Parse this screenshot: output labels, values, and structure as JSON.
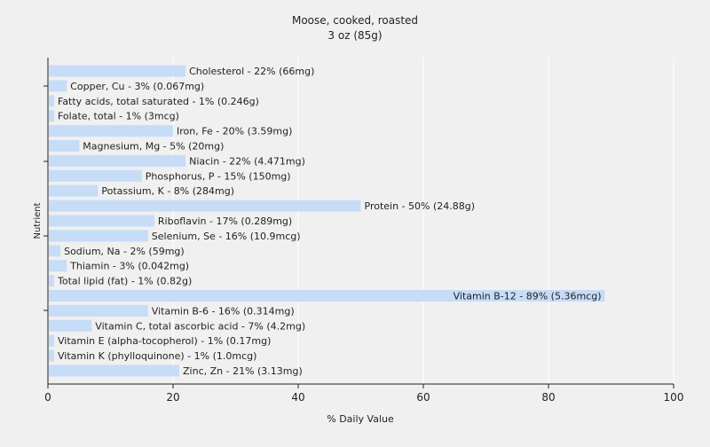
{
  "chart_data": {
    "type": "bar",
    "orientation": "horizontal",
    "title": "Moose, cooked, roasted",
    "subtitle": "3 oz (85g)",
    "xlabel": "% Daily Value",
    "ylabel": "Nutrient",
    "xlim": [
      0,
      100
    ],
    "xticks": [
      0,
      20,
      40,
      60,
      80,
      100
    ],
    "grid": true,
    "bar_color": "#c6dcf7",
    "background": "#f0f0f0",
    "grid_color": "#ffffff",
    "categories": [
      "Cholesterol",
      "Copper, Cu",
      "Fatty acids, total saturated",
      "Folate, total",
      "Iron, Fe",
      "Magnesium, Mg",
      "Niacin",
      "Phosphorus, P",
      "Potassium, K",
      "Protein",
      "Riboflavin",
      "Selenium, Se",
      "Sodium, Na",
      "Thiamin",
      "Total lipid (fat)",
      "Vitamin B-12",
      "Vitamin B-6",
      "Vitamin C, total ascorbic acid",
      "Vitamin E (alpha-tocopherol)",
      "Vitamin K (phylloquinone)",
      "Zinc, Zn"
    ],
    "values": [
      22,
      3,
      1,
      1,
      20,
      5,
      22,
      15,
      8,
      50,
      17,
      16,
      2,
      3,
      1,
      89,
      16,
      7,
      1,
      1,
      21
    ],
    "labels": [
      "Cholesterol - 22% (66mg)",
      "Copper, Cu - 3% (0.067mg)",
      "Fatty acids, total saturated - 1% (0.246g)",
      "Folate, total - 1% (3mcg)",
      "Iron, Fe - 20% (3.59mg)",
      "Magnesium, Mg - 5% (20mg)",
      "Niacin - 22% (4.471mg)",
      "Phosphorus, P - 15% (150mg)",
      "Potassium, K - 8% (284mg)",
      "Protein - 50% (24.88g)",
      "Riboflavin - 17% (0.289mg)",
      "Selenium, Se - 16% (10.9mcg)",
      "Sodium, Na - 2% (59mg)",
      "Thiamin - 3% (0.042mg)",
      "Total lipid (fat) - 1% (0.82g)",
      "Vitamin B-12 - 89% (5.36mcg)",
      "Vitamin B-6 - 16% (0.314mg)",
      "Vitamin C, total ascorbic acid - 7% (4.2mg)",
      "Vitamin E (alpha-tocopherol) - 1% (0.17mg)",
      "Vitamin K (phylloquinone) - 1% (1.0mcg)",
      "Zinc, Zn - 21% (3.13mg)"
    ]
  }
}
